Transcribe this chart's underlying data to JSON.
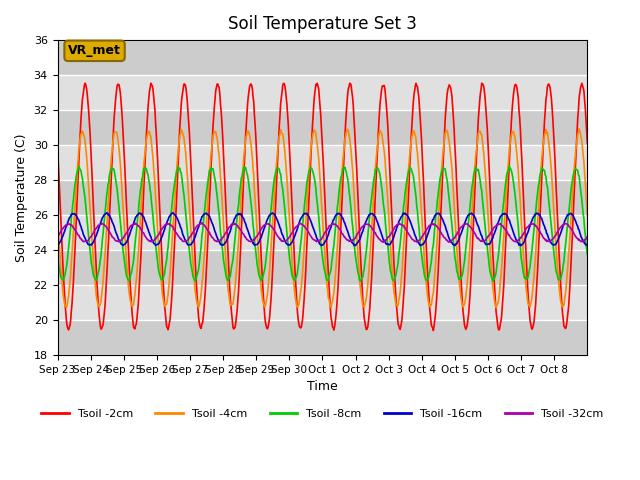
{
  "title": "Soil Temperature Set 3",
  "xlabel": "Time",
  "ylabel": "Soil Temperature (C)",
  "ylim": [
    18,
    36
  ],
  "yticks": [
    18,
    20,
    22,
    24,
    26,
    28,
    30,
    32,
    34,
    36
  ],
  "x_tick_labels": [
    "Sep 23",
    "Sep 24",
    "Sep 25",
    "Sep 26",
    "Sep 27",
    "Sep 28",
    "Sep 29",
    "Sep 30",
    "Oct 1",
    "Oct 2",
    "Oct 3",
    "Oct 4",
    "Oct 5",
    "Oct 6",
    "Oct 7",
    "Oct 8"
  ],
  "colors": {
    "Tsoil -2cm": "#ff0000",
    "Tsoil -4cm": "#ff8800",
    "Tsoil -8cm": "#00cc00",
    "Tsoil -16cm": "#0000cc",
    "Tsoil -32cm": "#aa00aa"
  },
  "bg_color": "#e0e0e0",
  "annotation_text": "VR_met",
  "annotation_bg": "#ddaa00",
  "annotation_edge": "#886600",
  "num_days": 16,
  "samples_per_day": 48,
  "series_params": {
    "Tsoil -2cm": {
      "mean": 26.5,
      "amp": 7.0,
      "lag": 0.0
    },
    "Tsoil -4cm": {
      "mean": 25.8,
      "amp": 5.0,
      "lag": 0.08
    },
    "Tsoil -8cm": {
      "mean": 25.5,
      "amp": 3.2,
      "lag": 0.18
    },
    "Tsoil -16cm": {
      "mean": 25.2,
      "amp": 0.9,
      "lag": 0.35
    },
    "Tsoil -32cm": {
      "mean": 25.0,
      "amp": 0.5,
      "lag": 0.5
    }
  }
}
